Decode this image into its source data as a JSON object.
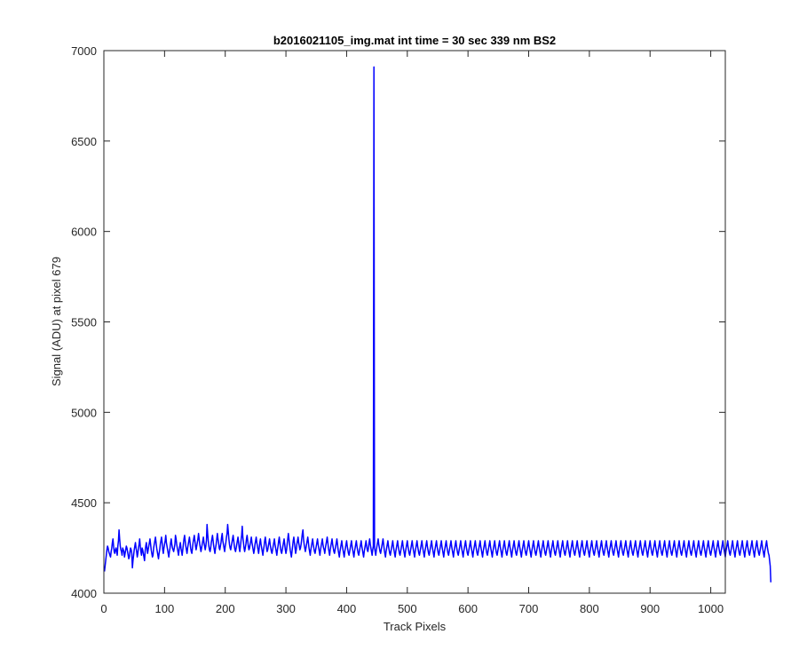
{
  "chart_data": {
    "type": "line",
    "title": "b2016021105_img.mat int time = 30 sec  339 nm BS2",
    "xlabel": "Track Pixels",
    "ylabel": "Signal (ADU) at pixel 679",
    "xlim": [
      0,
      1024
    ],
    "ylim": [
      4000,
      7000
    ],
    "xticks": [
      0,
      100,
      200,
      300,
      400,
      500,
      600,
      700,
      800,
      900,
      1000
    ],
    "yticks": [
      4000,
      4500,
      5000,
      5500,
      6000,
      6500,
      7000
    ],
    "xtick_labels": [
      "0",
      "100",
      "200",
      "300",
      "400",
      "500",
      "600",
      "700",
      "800",
      "900",
      "1000"
    ],
    "ytick_labels": [
      "4000",
      "4500",
      "5000",
      "5500",
      "6000",
      "6500",
      "7000"
    ],
    "grid": false,
    "legend": "none",
    "series": [
      {
        "color": "#0000ff",
        "x_start": 1,
        "x_step": 1,
        "y": [
          4120,
          4150,
          4180,
          4210,
          4240,
          4260,
          4250,
          4230,
          4220,
          4210,
          4200,
          4230,
          4250,
          4280,
          4300,
          4260,
          4230,
          4220,
          4240,
          4250,
          4230,
          4210,
          4260,
          4290,
          4350,
          4300,
          4260,
          4240,
          4230,
          4210,
          4250,
          4240,
          4230,
          4200,
          4220,
          4240,
          4260,
          4250,
          4230,
          4210,
          4190,
          4200,
          4230,
          4250,
          4240,
          4220,
          4140,
          4180,
          4210,
          4240,
          4260,
          4280,
          4250,
          4230,
          4200,
          4220,
          4250,
          4270,
          4300,
          4260,
          4230,
          4210,
          4250,
          4240,
          4220,
          4200,
          4180,
          4230,
          4260,
          4280,
          4250,
          4220,
          4240,
          4260,
          4280,
          4300,
          4270,
          4240,
          4220,
          4200,
          4210,
          4250,
          4270,
          4290,
          4310,
          4280,
          4250,
          4230,
          4210,
          4190,
          4220,
          4240,
          4270,
          4290,
          4310,
          4280,
          4240,
          4220,
          4250,
          4270,
          4290,
          4320,
          4280,
          4260,
          4240,
          4220,
          4200,
          4230,
          4250,
          4280,
          4300,
          4270,
          4250,
          4240,
          4230,
          4250,
          4270,
          4320,
          4300,
          4270,
          4250,
          4230,
          4210,
          4240,
          4260,
          4280,
          4250,
          4230,
          4210,
          4240,
          4270,
          4300,
          4320,
          4290,
          4260,
          4240,
          4220,
          4250,
          4270,
          4290,
          4310,
          4280,
          4250,
          4230,
          4220,
          4250,
          4280,
          4300,
          4320,
          4290,
          4260,
          4240,
          4260,
          4280,
          4300,
          4330,
          4300,
          4270,
          4250,
          4230,
          4250,
          4270,
          4290,
          4310,
          4280,
          4260,
          4240,
          4260,
          4290,
          4380,
          4330,
          4290,
          4260,
          4240,
          4230,
          4250,
          4280,
          4300,
          4320,
          4290,
          4260,
          4240,
          4220,
          4250,
          4270,
          4300,
          4330,
          4300,
          4280,
          4250,
          4240,
          4260,
          4280,
          4310,
          4330,
          4290,
          4270,
          4250,
          4230,
          4260,
          4280,
          4310,
          4330,
          4380,
          4340,
          4300,
          4270,
          4250,
          4240,
          4260,
          4280,
          4300,
          4320,
          4290,
          4260,
          4240,
          4230,
          4250,
          4270,
          4290,
          4310,
          4280,
          4250,
          4230,
          4260,
          4290,
          4320,
          4370,
          4310,
          4280,
          4250,
          4230,
          4250,
          4270,
          4300,
          4320,
          4290,
          4260,
          4240,
          4250,
          4270,
          4290,
          4310,
          4280,
          4260,
          4240,
          4220,
          4240,
          4270,
          4290,
          4310,
          4280,
          4260,
          4240,
          4220,
          4250,
          4280,
          4300,
          4270,
          4250,
          4230,
          4210,
          4240,
          4260,
          4290,
          4310,
          4280,
          4250,
          4230,
          4240,
          4260,
          4280,
          4300,
          4270,
          4250,
          4230,
          4220,
          4240,
          4260,
          4280,
          4300,
          4270,
          4250,
          4230,
          4210,
          4240,
          4260,
          4290,
          4310,
          4280,
          4250,
          4230,
          4220,
          4240,
          4260,
          4280,
          4300,
          4270,
          4240,
          4220,
          4240,
          4270,
          4300,
          4330,
          4300,
          4270,
          4240,
          4220,
          4200,
          4230,
          4260,
          4290,
          4310,
          4280,
          4250,
          4220,
          4240,
          4270,
          4290,
          4310,
          4280,
          4260,
          4240,
          4250,
          4270,
          4300,
          4330,
          4350,
          4300,
          4270,
          4250,
          4230,
          4250,
          4270,
          4290,
          4310,
          4280,
          4250,
          4230,
          4210,
          4240,
          4260,
          4280,
          4300,
          4270,
          4250,
          4230,
          4220,
          4240,
          4260,
          4280,
          4300,
          4270,
          4250,
          4230,
          4210,
          4240,
          4260,
          4280,
          4300,
          4270,
          4250,
          4240,
          4220,
          4250,
          4270,
          4290,
          4310,
          4280,
          4250,
          4230,
          4210,
          4240,
          4260,
          4280,
          4300,
          4270,
          4250,
          4230,
          4220,
          4240,
          4260,
          4280,
          4300,
          4270,
          4240,
          4220,
          4200,
          4230,
          4250,
          4270,
          4290,
          4260,
          4240,
          4220,
          4200,
          4230,
          4250,
          4270,
          4290,
          4260,
          4240,
          4220,
          4210,
          4230,
          4250,
          4270,
          4290,
          4260,
          4240,
          4220,
          4200,
          4230,
          4250,
          4270,
          4290,
          4260,
          4240,
          4220,
          4210,
          4230,
          4250,
          4270,
          4290,
          4260,
          4240,
          4220,
          4200,
          4230,
          4250,
          4270,
          4290,
          4260,
          4240,
          4230,
          4250,
          4280,
          4300,
          4270,
          4250,
          4230,
          4210,
          4240,
          4260,
          6910,
          4250,
          4230,
          4210,
          4240,
          4260,
          4280,
          4300,
          4270,
          4250,
          4230,
          4220,
          4240,
          4260,
          4280,
          4300,
          4270,
          4240,
          4220,
          4200,
          4230,
          4250,
          4270,
          4290,
          4260,
          4240,
          4220,
          4210,
          4230,
          4250,
          4270,
          4290,
          4260,
          4240,
          4220,
          4200,
          4230,
          4250,
          4270,
          4290,
          4260,
          4240,
          4220,
          4210,
          4230,
          4250,
          4270,
          4290,
          4260,
          4240,
          4220,
          4200,
          4230,
          4250,
          4270,
          4290,
          4260,
          4240,
          4220,
          4210,
          4230,
          4250,
          4270,
          4290,
          4260,
          4240,
          4220,
          4200,
          4230,
          4250,
          4270,
          4290,
          4260,
          4240,
          4220,
          4210,
          4230,
          4250,
          4270,
          4290,
          4260,
          4240,
          4220,
          4200,
          4230,
          4250,
          4270,
          4290,
          4260,
          4240,
          4220,
          4210,
          4230,
          4250,
          4270,
          4290,
          4260,
          4240,
          4220,
          4200,
          4230,
          4250,
          4270,
          4290,
          4260,
          4240,
          4220,
          4210,
          4230,
          4250,
          4270,
          4290,
          4260,
          4240,
          4220,
          4200,
          4230,
          4250,
          4270,
          4290,
          4260,
          4240,
          4220,
          4210,
          4230,
          4250,
          4270,
          4290,
          4260,
          4240,
          4220,
          4200,
          4230,
          4250,
          4270,
          4290,
          4260,
          4240,
          4220,
          4210,
          4230,
          4250,
          4270,
          4290,
          4260,
          4240,
          4220,
          4200,
          4230,
          4250,
          4270,
          4290,
          4260,
          4240,
          4220,
          4210,
          4230,
          4250,
          4270,
          4290,
          4260,
          4240,
          4220,
          4200,
          4230,
          4250,
          4270,
          4290,
          4260,
          4240,
          4220,
          4210,
          4230,
          4250,
          4270,
          4290,
          4260,
          4240,
          4220,
          4200,
          4230,
          4250,
          4270,
          4290,
          4260,
          4240,
          4220,
          4210,
          4230,
          4250,
          4270,
          4290,
          4260,
          4240,
          4220,
          4200,
          4230,
          4250,
          4270,
          4290,
          4260,
          4240,
          4220,
          4210,
          4230,
          4250,
          4270,
          4290,
          4260,
          4240,
          4220,
          4200,
          4230,
          4250,
          4270,
          4290,
          4260,
          4240,
          4220,
          4210,
          4230,
          4250,
          4270,
          4290,
          4260,
          4240,
          4220,
          4200,
          4230,
          4250,
          4270,
          4290,
          4260,
          4240,
          4220,
          4210,
          4230,
          4250,
          4270,
          4290,
          4260,
          4240,
          4220,
          4200,
          4230,
          4250,
          4270,
          4290,
          4260,
          4240,
          4220,
          4210,
          4230,
          4250,
          4270,
          4290,
          4260,
          4240,
          4220,
          4200,
          4230,
          4250,
          4270,
          4290,
          4260,
          4240,
          4220,
          4210,
          4230,
          4250,
          4270,
          4290,
          4260,
          4240,
          4220,
          4200,
          4230,
          4250,
          4270,
          4290,
          4260,
          4240,
          4220,
          4210,
          4230,
          4250,
          4270,
          4290,
          4260,
          4240,
          4220,
          4200,
          4230,
          4250,
          4270,
          4290,
          4260,
          4240,
          4220,
          4210,
          4230,
          4250,
          4270,
          4290,
          4260,
          4240,
          4220,
          4200,
          4230,
          4250,
          4270,
          4290,
          4260,
          4240,
          4220,
          4210,
          4230,
          4250,
          4270,
          4290,
          4260,
          4240,
          4220,
          4200,
          4230,
          4250,
          4270,
          4290,
          4260,
          4240,
          4220,
          4210,
          4230,
          4250,
          4270,
          4290,
          4260,
          4240,
          4220,
          4200,
          4230,
          4250,
          4270,
          4290,
          4260,
          4240,
          4220,
          4210,
          4230,
          4250,
          4270,
          4290,
          4260,
          4240,
          4220,
          4200,
          4230,
          4250,
          4270,
          4290,
          4260,
          4240,
          4220,
          4210,
          4230,
          4250,
          4270,
          4290,
          4260,
          4240,
          4220,
          4200,
          4230,
          4250,
          4270,
          4290,
          4260,
          4240,
          4220,
          4210,
          4230,
          4250,
          4270,
          4290,
          4260,
          4240,
          4220,
          4200,
          4230,
          4250,
          4270,
          4290,
          4260,
          4240,
          4220,
          4210,
          4230,
          4250,
          4270,
          4290,
          4260,
          4240,
          4220,
          4200,
          4230,
          4250,
          4270,
          4290,
          4260,
          4240,
          4220,
          4210,
          4230,
          4250,
          4270,
          4290,
          4260,
          4240,
          4220,
          4200,
          4230,
          4250,
          4270,
          4290,
          4260,
          4240,
          4220,
          4210,
          4230,
          4250,
          4270,
          4290,
          4260,
          4240,
          4220,
          4200,
          4230,
          4250,
          4270,
          4290,
          4260,
          4240,
          4220,
          4210,
          4230,
          4250,
          4270,
          4290,
          4260,
          4240,
          4220,
          4200,
          4230,
          4250,
          4270,
          4290,
          4260,
          4240,
          4220,
          4210,
          4230,
          4250,
          4270,
          4290,
          4260,
          4240,
          4220,
          4200,
          4230,
          4250,
          4270,
          4290,
          4260,
          4240,
          4220,
          4210,
          4230,
          4250,
          4270,
          4290,
          4260,
          4240,
          4220,
          4200,
          4230,
          4250,
          4270,
          4290,
          4260,
          4240,
          4220,
          4210,
          4230,
          4250,
          4270,
          4290,
          4260,
          4240,
          4220,
          4200,
          4230,
          4250,
          4270,
          4290,
          4260,
          4240,
          4220,
          4210,
          4230,
          4250,
          4270,
          4290,
          4260,
          4240,
          4220,
          4200,
          4230,
          4250,
          4270,
          4290,
          4260,
          4240,
          4220,
          4210,
          4230,
          4250,
          4270,
          4290,
          4260,
          4240,
          4220,
          4200,
          4230,
          4250,
          4270,
          4290,
          4260,
          4240,
          4220,
          4210,
          4230,
          4250,
          4270,
          4290,
          4260,
          4240,
          4220,
          4200,
          4230,
          4250,
          4270,
          4290,
          4260,
          4240,
          4220,
          4210,
          4230,
          4250,
          4270,
          4290,
          4260,
          4240,
          4220,
          4200,
          4230,
          4250,
          4270,
          4290,
          4260,
          4240,
          4220,
          4210,
          4230,
          4250,
          4270,
          4290,
          4260,
          4240,
          4220,
          4200,
          4230,
          4250,
          4270,
          4290,
          4260,
          4240,
          4220,
          4210,
          4230,
          4250,
          4270,
          4290,
          4260,
          4240,
          4220,
          4200,
          4230,
          4250,
          4270,
          4290,
          4260,
          4240,
          4220,
          4210,
          4230,
          4250,
          4270,
          4290,
          4260,
          4240,
          4220,
          4200,
          4230,
          4250,
          4270,
          4290,
          4260,
          4240,
          4220,
          4210,
          4230,
          4250,
          4270,
          4290,
          4260,
          4240,
          4220,
          4200,
          4230,
          4250,
          4270,
          4290,
          4260,
          4240,
          4220,
          4210,
          4230,
          4250,
          4270,
          4290,
          4260,
          4240,
          4220,
          4200,
          4230,
          4250,
          4270,
          4290,
          4260,
          4240,
          4220,
          4210,
          4180,
          4150,
          4060
        ]
      }
    ]
  }
}
